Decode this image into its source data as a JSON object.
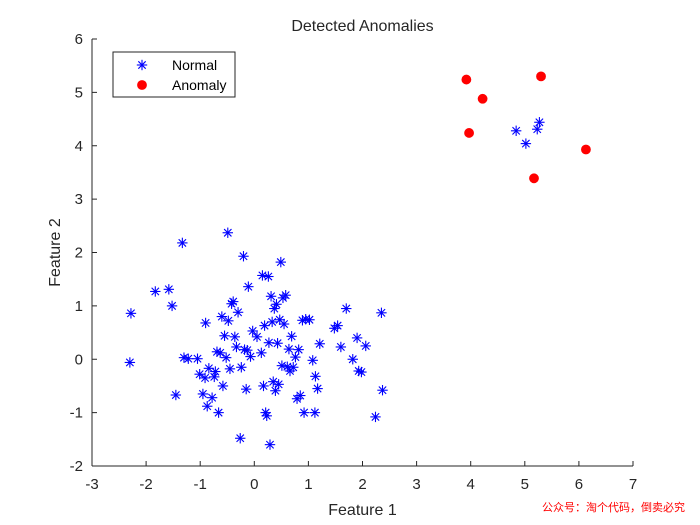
{
  "chart_data": {
    "type": "scatter",
    "title": "Detected Anomalies",
    "xlabel": "Feature 1",
    "ylabel": "Feature 2",
    "xlim": [
      -3,
      7
    ],
    "ylim": [
      -2,
      6
    ],
    "xticks": [
      -3,
      -2,
      -1,
      0,
      1,
      2,
      3,
      4,
      5,
      6,
      7
    ],
    "yticks": [
      -2,
      -1,
      0,
      1,
      2,
      3,
      4,
      5,
      6
    ],
    "grid": false,
    "legend_position": "top-left",
    "series": [
      {
        "name": "Normal",
        "marker": "asterisk",
        "color": "#0000ff",
        "points": [
          [
            -2.28,
            0.86
          ],
          [
            -2.3,
            -0.06
          ],
          [
            -1.83,
            1.27
          ],
          [
            -1.58,
            1.31
          ],
          [
            -1.52,
            1.0
          ],
          [
            -1.45,
            -0.67
          ],
          [
            -1.33,
            2.18
          ],
          [
            -1.3,
            0.03
          ],
          [
            -1.22,
            0.01
          ],
          [
            -1.05,
            0.01
          ],
          [
            -1.01,
            -0.28
          ],
          [
            -0.95,
            -0.65
          ],
          [
            -0.9,
            0.68
          ],
          [
            -0.91,
            -0.35
          ],
          [
            -0.87,
            -0.88
          ],
          [
            -0.84,
            -0.17
          ],
          [
            -0.78,
            -0.72
          ],
          [
            -0.74,
            -0.33
          ],
          [
            -0.72,
            -0.23
          ],
          [
            -0.69,
            0.14
          ],
          [
            -0.66,
            -1.0
          ],
          [
            -0.63,
            0.12
          ],
          [
            -0.6,
            0.8
          ],
          [
            -0.58,
            -0.5
          ],
          [
            -0.55,
            0.44
          ],
          [
            -0.52,
            0.03
          ],
          [
            -0.49,
            2.37
          ],
          [
            -0.48,
            0.72
          ],
          [
            -0.45,
            -0.18
          ],
          [
            -0.42,
            1.04
          ],
          [
            -0.39,
            1.08
          ],
          [
            -0.36,
            0.42
          ],
          [
            -0.33,
            0.23
          ],
          [
            -0.3,
            0.88
          ],
          [
            -0.26,
            -1.48
          ],
          [
            -0.24,
            -0.15
          ],
          [
            -0.2,
            1.93
          ],
          [
            -0.18,
            0.18
          ],
          [
            -0.15,
            -0.56
          ],
          [
            -0.13,
            0.17
          ],
          [
            -0.11,
            1.36
          ],
          [
            -0.07,
            0.05
          ],
          [
            -0.03,
            0.53
          ],
          [
            0.05,
            0.42
          ],
          [
            0.13,
            0.12
          ],
          [
            0.15,
            1.57
          ],
          [
            0.17,
            -0.5
          ],
          [
            0.19,
            0.63
          ],
          [
            0.21,
            -1.0
          ],
          [
            0.23,
            -1.06
          ],
          [
            0.26,
            1.55
          ],
          [
            0.27,
            0.31
          ],
          [
            0.29,
            -1.6
          ],
          [
            0.31,
            1.18
          ],
          [
            0.33,
            0.7
          ],
          [
            0.35,
            -0.42
          ],
          [
            0.37,
            0.95
          ],
          [
            0.39,
            -0.59
          ],
          [
            0.41,
            1.03
          ],
          [
            0.43,
            0.3
          ],
          [
            0.45,
            -0.47
          ],
          [
            0.47,
            0.74
          ],
          [
            0.49,
            1.82
          ],
          [
            0.51,
            -0.12
          ],
          [
            0.53,
            1.15
          ],
          [
            0.55,
            0.66
          ],
          [
            0.58,
            1.2
          ],
          [
            0.61,
            -0.14
          ],
          [
            0.64,
            0.19
          ],
          [
            0.66,
            -0.22
          ],
          [
            0.69,
            0.43
          ],
          [
            0.72,
            -0.15
          ],
          [
            0.76,
            0.04
          ],
          [
            0.79,
            -0.74
          ],
          [
            0.82,
            0.18
          ],
          [
            0.85,
            -0.68
          ],
          [
            0.89,
            0.73
          ],
          [
            0.92,
            -1.0
          ],
          [
            0.95,
            0.75
          ],
          [
            1.02,
            0.74
          ],
          [
            1.08,
            -0.02
          ],
          [
            1.12,
            -1.0
          ],
          [
            1.13,
            -0.32
          ],
          [
            1.17,
            -0.55
          ],
          [
            1.21,
            0.29
          ],
          [
            1.48,
            0.58
          ],
          [
            1.54,
            0.63
          ],
          [
            1.6,
            0.23
          ],
          [
            1.7,
            0.95
          ],
          [
            1.82,
            0.0
          ],
          [
            1.9,
            0.4
          ],
          [
            1.93,
            -0.22
          ],
          [
            1.98,
            -0.24
          ],
          [
            2.06,
            0.25
          ],
          [
            2.24,
            -1.08
          ],
          [
            2.35,
            0.87
          ],
          [
            2.37,
            -0.58
          ],
          [
            4.84,
            4.28
          ],
          [
            5.02,
            4.04
          ],
          [
            5.23,
            4.31
          ],
          [
            5.27,
            4.44
          ]
        ]
      },
      {
        "name": "Anomaly",
        "marker": "filled-circle",
        "color": "#ff0000",
        "points": [
          [
            3.92,
            5.24
          ],
          [
            3.97,
            4.24
          ],
          [
            4.22,
            4.88
          ],
          [
            5.17,
            3.39
          ],
          [
            5.3,
            5.3
          ],
          [
            6.13,
            3.93
          ]
        ]
      }
    ]
  },
  "watermark": {
    "text": "公众号：淘个代码，倒卖必究",
    "color": "#ff0000"
  }
}
